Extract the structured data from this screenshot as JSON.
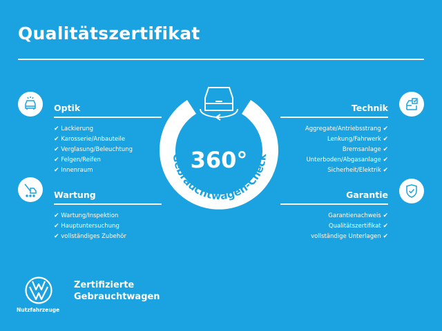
{
  "title": "Qualitätszertifikat",
  "badge": {
    "number": "360°",
    "caption": "Gebrauchtwagen-Check"
  },
  "sections": {
    "optik": {
      "title": "Optik",
      "icon": "car-front-icon",
      "items": [
        "Lackierung",
        "Karosserie/Anbauteile",
        "Verglasung/Beleuchtung",
        "Felgen/Reifen",
        "Innenraum"
      ]
    },
    "wartung": {
      "title": "Wartung",
      "icon": "wrench-van-icon",
      "items": [
        "Wartung/Inspektion",
        "Hauptuntersuchung",
        "vollständiges Zubehör"
      ]
    },
    "technik": {
      "title": "Technik",
      "icon": "car-checklist-icon",
      "items": [
        "Aggregate/Antriebsstrang",
        "Lenkung/Fahrwerk",
        "Bremsanlage",
        "Unterboden/Abgasanlage",
        "Sicherheit/Elektrik"
      ]
    },
    "garantie": {
      "title": "Garantie",
      "icon": "shield-check-icon",
      "items": [
        "Garantienachweis",
        "Qualitätszertifikat",
        "vollständige Unterlagen"
      ]
    }
  },
  "check_mark": "✔",
  "footer": {
    "brand": "Nutzfahrzeuge",
    "line1": "Zertifizierte",
    "line2": "Gebrauchtwagen"
  },
  "colors": {
    "background": "#1aa3e0",
    "foreground": "#ffffff"
  }
}
